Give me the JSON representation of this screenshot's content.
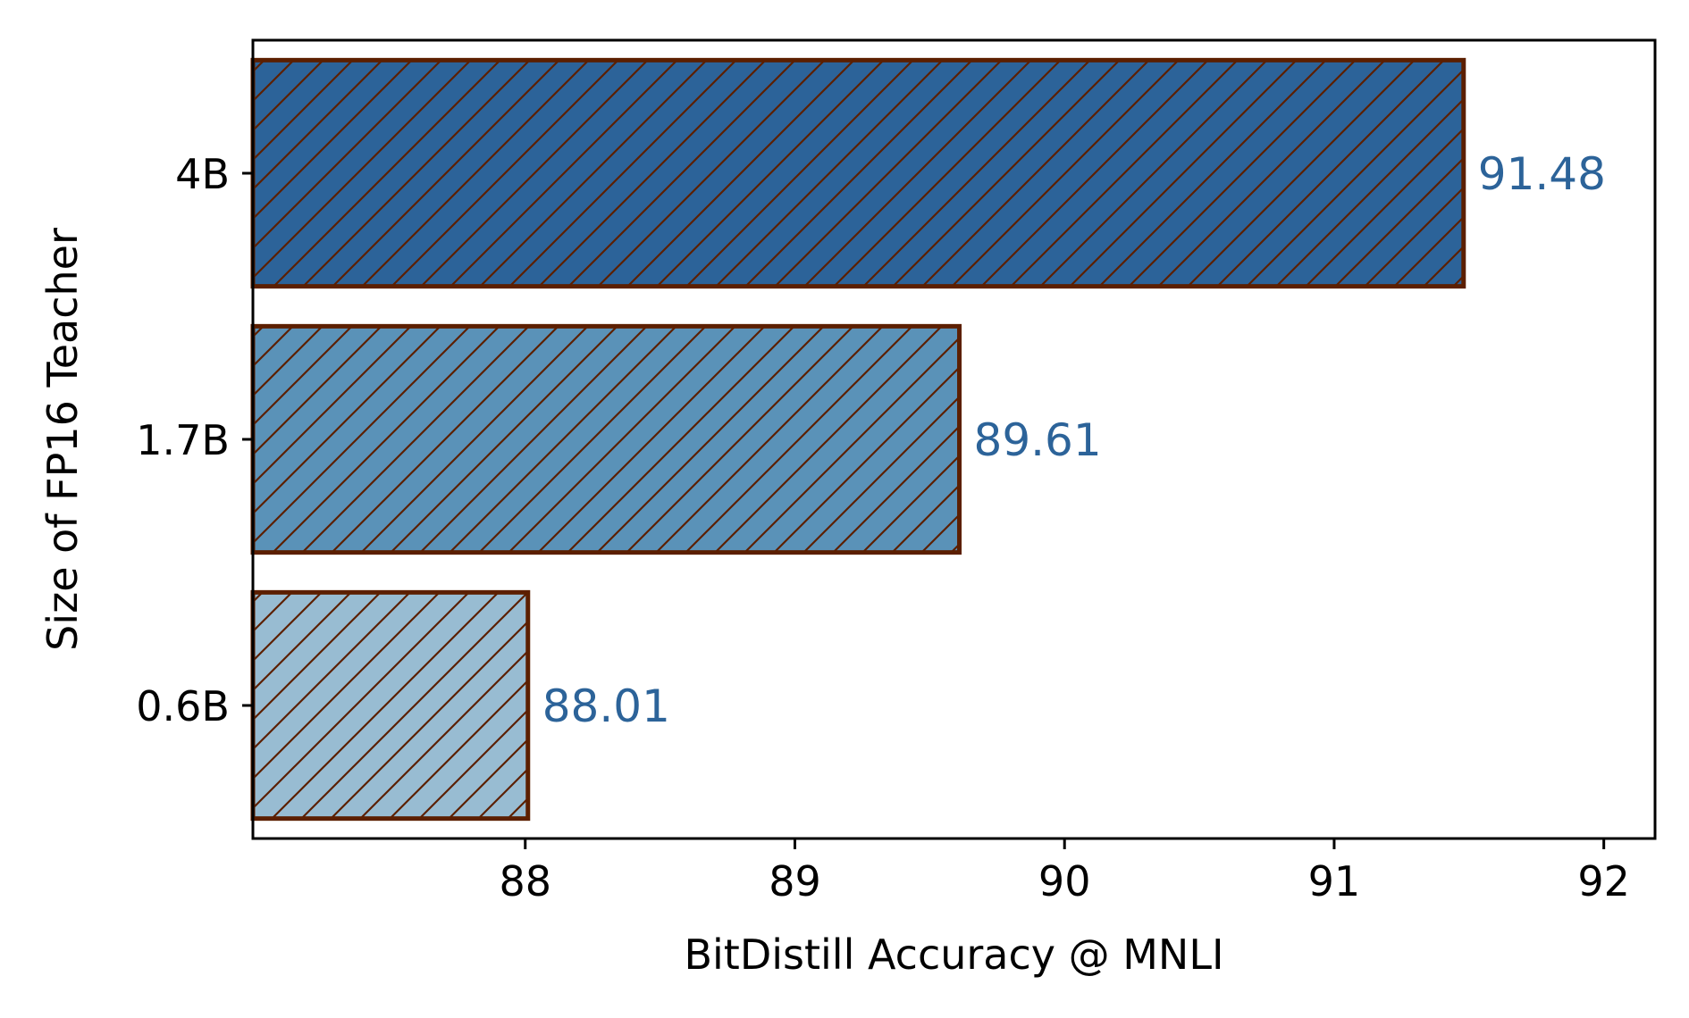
{
  "colors": {
    "edge": "#5c1f00",
    "label": "#2c6399",
    "axis": "#000000"
  },
  "chart_data": {
    "type": "bar",
    "orientation": "horizontal",
    "title": "",
    "xlabel": "BitDistill Accuracy @ MNLI",
    "ylabel": "Size of FP16 Teacher",
    "categories": [
      "0.6B",
      "1.7B",
      "4B"
    ],
    "values": [
      88.01,
      89.61,
      91.48
    ],
    "value_labels": [
      "88.01",
      "89.61",
      "91.48"
    ],
    "bar_colors": [
      "#98bcd2",
      "#5a92b8",
      "#2c6399"
    ],
    "hatch": "diagonal",
    "xlim": [
      86.99,
      92.19
    ],
    "xticks": [
      88,
      89,
      90,
      91,
      92
    ],
    "xtick_labels": [
      "88",
      "89",
      "90",
      "91",
      "92"
    ],
    "grid": false,
    "legend": "none"
  }
}
